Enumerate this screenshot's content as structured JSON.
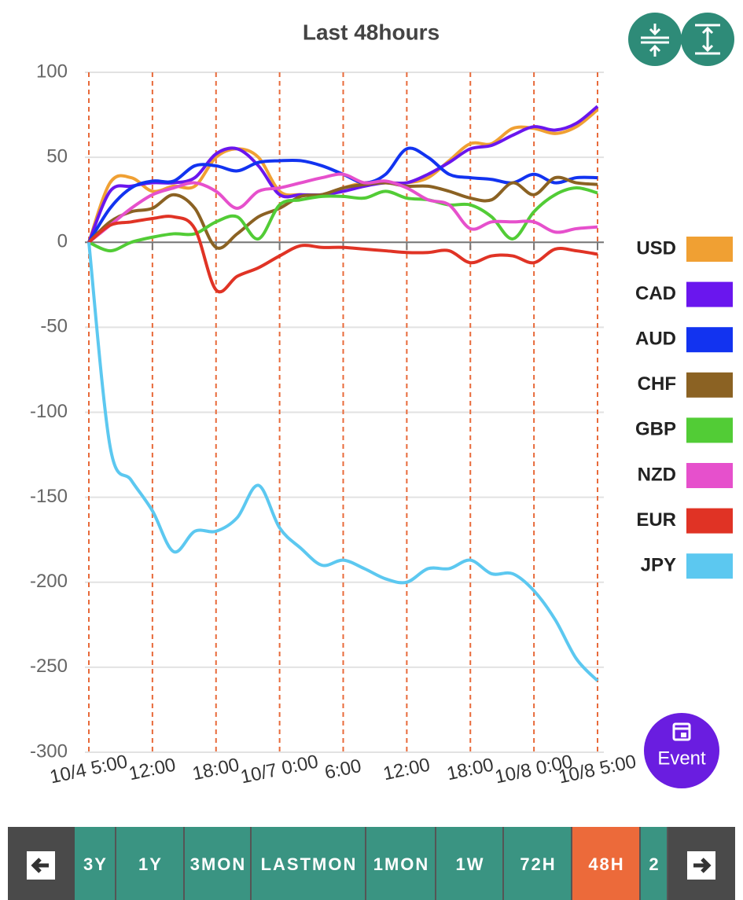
{
  "chart_data": {
    "type": "line",
    "title": "Last 48hours",
    "x": [
      0,
      2,
      4,
      6,
      8,
      10,
      12,
      14,
      16,
      18,
      20,
      22,
      24,
      26,
      28,
      30,
      32,
      34,
      36,
      38,
      40,
      42,
      44,
      46,
      48
    ],
    "xlim": [
      0,
      48
    ],
    "xticks": [
      {
        "value": 0,
        "label": "10/4 5:00"
      },
      {
        "value": 6,
        "label": "12:00"
      },
      {
        "value": 12,
        "label": "18:00"
      },
      {
        "value": 18,
        "label": "10/7 0:00"
      },
      {
        "value": 24,
        "label": "6:00"
      },
      {
        "value": 30,
        "label": "12:00"
      },
      {
        "value": 36,
        "label": "18:00"
      },
      {
        "value": 42,
        "label": "10/8 0:00"
      },
      {
        "value": 48,
        "label": "10/8 5:00"
      }
    ],
    "ylim": [
      -300,
      100
    ],
    "yticks": [
      100,
      50,
      0,
      -50,
      -100,
      -150,
      -200,
      -250,
      -300
    ],
    "grid": true,
    "legend": "right",
    "series": [
      {
        "name": "USD",
        "color": "#f0a033",
        "values": [
          0,
          35,
          38,
          30,
          33,
          33,
          50,
          55,
          50,
          30,
          28,
          28,
          32,
          35,
          35,
          35,
          38,
          48,
          58,
          58,
          67,
          67,
          64,
          68,
          78
        ]
      },
      {
        "name": "CAD",
        "color": "#6a16ee",
        "values": [
          0,
          30,
          33,
          35,
          35,
          38,
          52,
          55,
          45,
          28,
          28,
          28,
          30,
          33,
          35,
          35,
          40,
          47,
          55,
          57,
          63,
          68,
          66,
          70,
          80
        ]
      },
      {
        "name": "AUD",
        "color": "#1233f0",
        "values": [
          0,
          20,
          32,
          36,
          36,
          45,
          45,
          42,
          47,
          48,
          48,
          45,
          40,
          35,
          40,
          55,
          50,
          40,
          38,
          37,
          35,
          40,
          35,
          38,
          38
        ]
      },
      {
        "name": "CHF",
        "color": "#8b6223",
        "values": [
          0,
          12,
          18,
          20,
          28,
          20,
          -3,
          5,
          15,
          20,
          27,
          28,
          32,
          34,
          35,
          33,
          33,
          30,
          26,
          25,
          35,
          28,
          38,
          35,
          34
        ]
      },
      {
        "name": "GBP",
        "color": "#52cc36",
        "values": [
          0,
          -5,
          0,
          3,
          5,
          5,
          12,
          15,
          2,
          22,
          25,
          27,
          27,
          26,
          30,
          26,
          25,
          22,
          22,
          15,
          2,
          18,
          28,
          32,
          29
        ]
      },
      {
        "name": "NZD",
        "color": "#e650cc",
        "values": [
          0,
          10,
          20,
          28,
          32,
          35,
          30,
          20,
          30,
          32,
          35,
          38,
          40,
          35,
          36,
          32,
          25,
          22,
          8,
          12,
          12,
          12,
          6,
          8,
          9
        ]
      },
      {
        "name": "EUR",
        "color": "#e03325",
        "values": [
          0,
          10,
          12,
          14,
          15,
          8,
          -28,
          -20,
          -15,
          -8,
          -2,
          -3,
          -3,
          -4,
          -5,
          -6,
          -6,
          -5,
          -12,
          -8,
          -8,
          -12,
          -4,
          -5,
          -7
        ]
      },
      {
        "name": "JPY",
        "color": "#5cc8f0",
        "values": [
          0,
          -120,
          -140,
          -158,
          -182,
          -170,
          -170,
          -162,
          -143,
          -168,
          -180,
          -190,
          -187,
          -192,
          -198,
          -200,
          -192,
          -192,
          -187,
          -195,
          -195,
          -205,
          -222,
          -245,
          -258
        ]
      }
    ]
  },
  "event_button": "Event",
  "periods": [
    {
      "label": "3Y"
    },
    {
      "label": "1Y"
    },
    {
      "label": "3MON"
    },
    {
      "label": "LASTMON"
    },
    {
      "label": "1MON"
    },
    {
      "label": "1W"
    },
    {
      "label": "72H"
    },
    {
      "label": "48H",
      "active": true
    },
    {
      "label": "2"
    }
  ]
}
